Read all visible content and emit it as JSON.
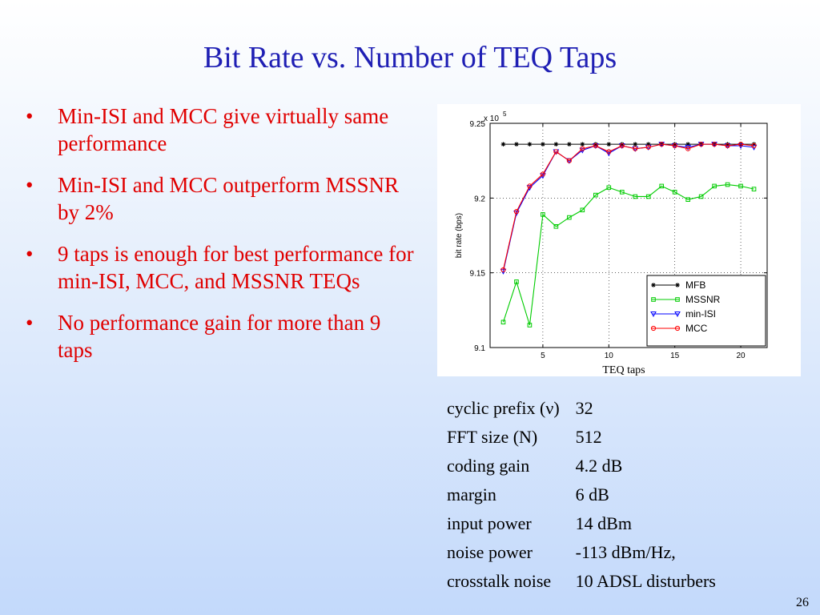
{
  "slide": {
    "title": "Bit Rate vs. Number of TEQ Taps",
    "page_number": "26"
  },
  "bullets": [
    {
      "text": "Min-ISI and MCC give virtually same performance"
    },
    {
      "text": "Min-ISI and MCC outperform MSSNR by 2%"
    },
    {
      "text": "9 taps is enough for best performance for min-ISI, MCC, and MSSNR TEQs"
    },
    {
      "text": "No performance gain for more than 9 taps"
    }
  ],
  "parameters": [
    {
      "name": "cyclic prefix (ν)",
      "value": "32"
    },
    {
      "name": "FFT size (N)",
      "value": "512"
    },
    {
      "name": "coding gain",
      "value": "4.2 dB"
    },
    {
      "name": "margin",
      "value": "6 dB"
    },
    {
      "name": "input power",
      "value": "14 dBm"
    },
    {
      "name": "noise power",
      "value": "-113 dBm/Hz,"
    },
    {
      "name": "crosstalk noise",
      "value": "10 ADSL disturbers"
    }
  ],
  "colors": {
    "title": "#1f1fb4",
    "bullets": "#e00000",
    "MFB": "#000000",
    "MSSNR": "#00cc00",
    "min-ISI": "#0000ff",
    "MCC": "#ff0000"
  },
  "chart_data": {
    "type": "line",
    "title": "",
    "xlabel": "TEQ taps",
    "ylabel": "bit rate (bps)",
    "y_multiplier_base": "x 10",
    "y_multiplier_exp": "5",
    "xlim": [
      1,
      22
    ],
    "ylim": [
      9.1,
      9.25
    ],
    "xticks": [
      5,
      10,
      15,
      20
    ],
    "yticks": [
      9.1,
      9.15,
      9.2,
      9.25
    ],
    "xtick_labels": [
      "5",
      "10",
      "15",
      "20"
    ],
    "ytick_labels": [
      "9.1",
      "9.15",
      "9.2",
      "9.25"
    ],
    "grid": true,
    "legend_position": "bottom-right",
    "x": [
      2,
      3,
      4,
      5,
      6,
      7,
      8,
      9,
      10,
      11,
      12,
      13,
      14,
      15,
      16,
      17,
      18,
      19,
      20,
      21
    ],
    "series": [
      {
        "name": "MFB",
        "marker": "star",
        "values": [
          9.236,
          9.236,
          9.236,
          9.236,
          9.236,
          9.236,
          9.236,
          9.236,
          9.236,
          9.236,
          9.236,
          9.236,
          9.236,
          9.236,
          9.236,
          9.236,
          9.236,
          9.236,
          9.236,
          9.236
        ]
      },
      {
        "name": "MSSNR",
        "marker": "square",
        "values": [
          9.117,
          9.144,
          9.115,
          9.189,
          9.181,
          9.187,
          9.192,
          9.202,
          9.207,
          9.204,
          9.201,
          9.201,
          9.208,
          9.204,
          9.199,
          9.201,
          9.208,
          9.209,
          9.208,
          9.206
        ]
      },
      {
        "name": "min-ISI",
        "marker": "triangle-down",
        "values": [
          9.151,
          9.19,
          9.207,
          9.215,
          9.231,
          9.225,
          9.232,
          9.235,
          9.23,
          9.235,
          9.233,
          9.234,
          9.236,
          9.235,
          9.234,
          9.236,
          9.236,
          9.235,
          9.235,
          9.234
        ]
      },
      {
        "name": "MCC",
        "marker": "circle",
        "values": [
          9.152,
          9.191,
          9.208,
          9.216,
          9.231,
          9.225,
          9.233,
          9.235,
          9.231,
          9.235,
          9.233,
          9.234,
          9.236,
          9.235,
          9.233,
          9.236,
          9.236,
          9.235,
          9.236,
          9.235
        ]
      }
    ]
  }
}
